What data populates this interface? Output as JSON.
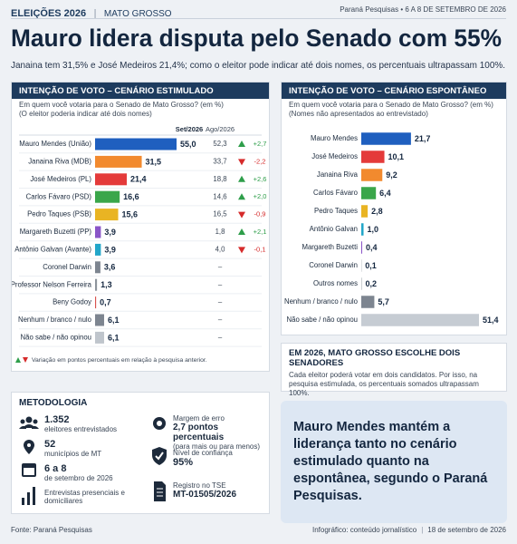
{
  "header": {
    "kicker": "ELEIÇÕES 2026",
    "region": "MATO GROSSO",
    "source": "Paraná Pesquisas",
    "dates": "6 A 8 DE SETEMBRO DE 2026",
    "title": "Mauro lidera disputa pelo Senado com 55%",
    "subtitle": "Janaina tem 31,5% e José Medeiros 21,4%; como o eleitor pode indicar até dois nomes, os percentuais ultrapassam 100%."
  },
  "chart_data": [
    {
      "type": "bar",
      "orientation": "horizontal",
      "title": "INTENÇÃO DE VOTO – CENÁRIO ESTIMULADO",
      "subtitle": "Em quem você votaria para o Senado de Mato Grosso? (em %)",
      "note": "(O eleitor poderia indicar até dois nomes)",
      "categories": [
        "Mauro Mendes (União)",
        "Janaina Riva (MDB)",
        "José Medeiros (PL)",
        "Carlos Fávaro (PSD)",
        "Pedro Taques (PSB)",
        "Margareth Buzetti (PP)",
        "Antônio Galvan (Avante)",
        "Coronel Darwin",
        "Professor Nelson Ferreira",
        "Beny Godoy",
        "Nenhum / branco / nulo",
        "Não sabe / não opinou"
      ],
      "colors": [
        "#1f5fbf",
        "#f28a2e",
        "#e43a3a",
        "#3aa64a",
        "#e9b423",
        "#8a55c8",
        "#22a6c9",
        "#7d8590",
        "#8d949c",
        "#d9534f",
        "#7d8590",
        "#bfc5cc"
      ],
      "series": [
        {
          "name": "Set/2026",
          "values": [
            55.0,
            31.5,
            21.4,
            16.6,
            15.6,
            3.9,
            3.9,
            3.6,
            1.3,
            0.7,
            6.1,
            6.1
          ],
          "value_labels": [
            "55,0",
            "31,5",
            "21,4",
            "16,6",
            "15,6",
            "3,9",
            "3,9",
            "3,6",
            "1,3",
            "0,7",
            "6,1",
            "6,1"
          ]
        },
        {
          "name": "Ago/2026",
          "values": [
            52.3,
            33.7,
            18.8,
            14.6,
            16.5,
            1.8,
            4.0,
            null,
            null,
            null,
            null,
            null
          ],
          "value_labels": [
            "52,3",
            "33,7",
            "18,8",
            "14,6",
            "16,5",
            "1,8",
            "4,0",
            "–",
            "–",
            "–",
            "–",
            "–"
          ]
        }
      ],
      "change": {
        "values": [
          2.7,
          -2.2,
          2.6,
          2.0,
          -0.9,
          2.1,
          -0.1,
          null,
          null,
          null,
          null,
          null
        ],
        "value_labels": [
          "+2,7",
          "-2,2",
          "+2,6",
          "+2,0",
          "-0,9",
          "+2,1",
          "-0,1",
          null,
          null,
          null,
          null,
          null
        ]
      },
      "up_color": "#2e9e4a",
      "down_color": "#d62b2b",
      "legend_note": "Variação em pontos percentuais em relação à pesquisa anterior."
    },
    {
      "type": "bar",
      "orientation": "horizontal",
      "title": "INTENÇÃO DE VOTO – CENÁRIO ESPONTÂNEO",
      "subtitle": "Em quem você votaria para o Senado de Mato Grosso? (em %)",
      "note": "(Nomes não apresentados ao entrevistado)",
      "categories": [
        "Mauro Mendes",
        "José Medeiros",
        "Janaina Riva",
        "Carlos Fávaro",
        "Pedro Taques",
        "Antônio Galvan",
        "Margareth Buzetti",
        "Coronel Darwin",
        "Outros nomes",
        "Nenhum / branco / nulo",
        "Não sabe / não opinou"
      ],
      "colors": [
        "#1f5fbf",
        "#e43a3a",
        "#f28a2e",
        "#3aa64a",
        "#e9b423",
        "#22a6c9",
        "#8a55c8",
        "#7d8590",
        "#9aa1a8",
        "#7d8590",
        "#c6ccd3"
      ],
      "values": [
        21.7,
        10.1,
        9.2,
        6.4,
        2.8,
        1.0,
        0.4,
        0.1,
        0.2,
        5.7,
        51.4
      ],
      "value_labels": [
        "21,7",
        "10,1",
        "9,2",
        "6,4",
        "2,8",
        "1,0",
        "0,4",
        "0,1",
        "0,2",
        "5,7",
        "51,4"
      ]
    }
  ],
  "info_box": {
    "title": "EM 2026, MATO GROSSO ESCOLHE DOIS SENADORES",
    "text": "Cada eleitor poderá votar em dois candidatos. Por isso, na pesquisa estimulada, os percentuais somados ultrapassam 100%."
  },
  "methodology": {
    "title": "METODOLOGIA",
    "interviews": {
      "value": "1.352",
      "label": "eleitores entrevistados"
    },
    "cities": {
      "value": "52",
      "label": "municípios de MT"
    },
    "period": {
      "value": "6 a 8",
      "label": "de setembro de 2026"
    },
    "mode": {
      "label": "Entrevistas presenciais e domiciliares"
    },
    "margin": {
      "label": "Margem de erro",
      "value": "2,7 pontos percentuais",
      "note": "(para mais ou para menos)"
    },
    "confidence": {
      "label": "Nível de confiança",
      "value": "95%"
    },
    "registry": {
      "label": "Registro no TSE",
      "value": "MT-01505/2026"
    }
  },
  "highlight": "Mauro Mendes mantém a liderança tanto no cenário estimulado quanto na espontânea, segundo o Paraná Pesquisas.",
  "footer": {
    "source": "Fonte: Paraná Pesquisas",
    "credit": "Infográfico: conteúdo jornalístico",
    "date": "18 de setembro de 2026"
  }
}
